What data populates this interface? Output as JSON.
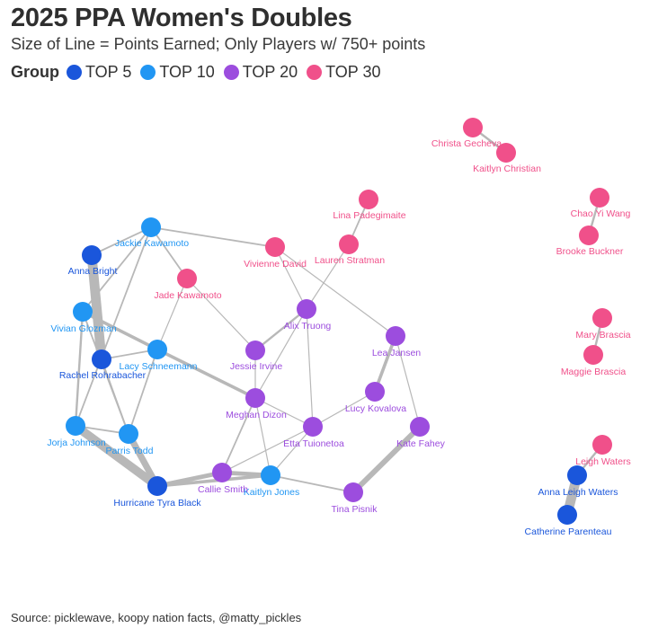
{
  "header": {
    "title": "2025 PPA Women's Doubles",
    "subtitle": "Size of Line = Points Earned; Only Players w/ 750+ points"
  },
  "legend": {
    "title": "Group",
    "items": [
      {
        "label": "TOP 5",
        "group": "top5"
      },
      {
        "label": "TOP 10",
        "group": "top10"
      },
      {
        "label": "TOP 20",
        "group": "top20"
      },
      {
        "label": "TOP 30",
        "group": "top30"
      }
    ]
  },
  "colors": {
    "top5": "#1a56db",
    "top10": "#2196f3",
    "top20": "#9c4dde",
    "top30": "#f0508a",
    "edge": "#b8b8b8"
  },
  "source": "Source: picklewave, koopy nation facts, @matty_pickles",
  "chart_data": {
    "type": "network",
    "nodes": [
      {
        "id": "christa",
        "label": "Christa Gecheva",
        "group": "top30"
      },
      {
        "id": "kaitlyn",
        "label": "Kaitlyn Christian",
        "group": "top30"
      },
      {
        "id": "lina",
        "label": "Lina Padegimaite",
        "group": "top30"
      },
      {
        "id": "chao",
        "label": "Chao Yi Wang",
        "group": "top30"
      },
      {
        "id": "brooke",
        "label": "Brooke Buckner",
        "group": "top30"
      },
      {
        "id": "lauren",
        "label": "Lauren Stratman",
        "group": "top30"
      },
      {
        "id": "vivienne",
        "label": "Vivienne David",
        "group": "top30"
      },
      {
        "id": "jade",
        "label": "Jade Kawamoto",
        "group": "top30"
      },
      {
        "id": "mary",
        "label": "Mary Brascia",
        "group": "top30"
      },
      {
        "id": "maggie",
        "label": "Maggie Brascia",
        "group": "top30"
      },
      {
        "id": "leigh",
        "label": "Leigh Waters",
        "group": "top30"
      },
      {
        "id": "jackie",
        "label": "Jackie Kawamoto",
        "group": "top10"
      },
      {
        "id": "vivian",
        "label": "Vivian Glozman",
        "group": "top10"
      },
      {
        "id": "lacy",
        "label": "Lacy Schneemann",
        "group": "top10"
      },
      {
        "id": "jorja",
        "label": "Jorja Johnson",
        "group": "top10"
      },
      {
        "id": "parris",
        "label": "Parris Todd",
        "group": "top10"
      },
      {
        "id": "kaitlyce",
        "label": "Kaitlyn Jones",
        "group": "top10"
      },
      {
        "id": "anna_bright",
        "label": "Anna Bright",
        "group": "top5"
      },
      {
        "id": "rachel",
        "label": "Rachel Rohrabacher",
        "group": "top5"
      },
      {
        "id": "tyra",
        "label": "Hurricane Tyra Black",
        "group": "top5"
      },
      {
        "id": "anna_leigh",
        "label": "Anna Leigh Waters",
        "group": "top5"
      },
      {
        "id": "catherine",
        "label": "Catherine Parenteau",
        "group": "top5"
      },
      {
        "id": "alix",
        "label": "Alix Truong",
        "group": "top20"
      },
      {
        "id": "jessie",
        "label": "Jessie Irvine",
        "group": "top20"
      },
      {
        "id": "meghan",
        "label": "Meghan Dizon",
        "group": "top20"
      },
      {
        "id": "lea",
        "label": "Lea Jansen",
        "group": "top20"
      },
      {
        "id": "lucy",
        "label": "Lucy Kovalova",
        "group": "top20"
      },
      {
        "id": "etta",
        "label": "Etta Tuionetoa",
        "group": "top20"
      },
      {
        "id": "kate",
        "label": "Kate Fahey",
        "group": "top20"
      },
      {
        "id": "callie",
        "label": "Callie Smith",
        "group": "top20"
      },
      {
        "id": "tina",
        "label": "Tina Pisnik",
        "group": "top20"
      }
    ],
    "edges": [
      {
        "source": "christa",
        "target": "kaitlyn",
        "weight": 2
      },
      {
        "source": "chao",
        "target": "brooke",
        "weight": 2
      },
      {
        "source": "mary",
        "target": "maggie",
        "weight": 2
      },
      {
        "source": "leigh",
        "target": "anna_leigh",
        "weight": 2
      },
      {
        "source": "anna_leigh",
        "target": "catherine",
        "weight": 9
      },
      {
        "source": "anna_bright",
        "target": "rachel",
        "weight": 9
      },
      {
        "source": "jorja",
        "target": "tyra",
        "weight": 8
      },
      {
        "source": "parris",
        "target": "tyra",
        "weight": 6
      },
      {
        "source": "tyra",
        "target": "callie",
        "weight": 4
      },
      {
        "source": "tyra",
        "target": "kaitlyce",
        "weight": 3
      },
      {
        "source": "callie",
        "target": "kaitlyce",
        "weight": 4
      },
      {
        "source": "kaitlyce",
        "target": "tina",
        "weight": 1.5
      },
      {
        "source": "tina",
        "target": "kate",
        "weight": 5
      },
      {
        "source": "lea",
        "target": "lucy",
        "weight": 3
      },
      {
        "source": "lacy",
        "target": "meghan",
        "weight": 3
      },
      {
        "source": "vivian",
        "target": "lacy",
        "weight": 3
      },
      {
        "source": "jackie",
        "target": "anna_bright",
        "weight": 1.5
      },
      {
        "source": "jackie",
        "target": "vivian",
        "weight": 1.5
      },
      {
        "source": "jackie",
        "target": "vivienne",
        "weight": 1.5
      },
      {
        "source": "jackie",
        "target": "jade",
        "weight": 1.5
      },
      {
        "source": "jackie",
        "target": "jorja",
        "weight": 1.5
      },
      {
        "source": "vivian",
        "target": "parris",
        "weight": 1.5
      },
      {
        "source": "rachel",
        "target": "lacy",
        "weight": 1.5
      },
      {
        "source": "rachel",
        "target": "parris",
        "weight": 1.5
      },
      {
        "source": "jorja",
        "target": "vivian",
        "weight": 2
      },
      {
        "source": "jorja",
        "target": "parris",
        "weight": 1.5
      },
      {
        "source": "lacy",
        "target": "parris",
        "weight": 1.5
      },
      {
        "source": "jade",
        "target": "lacy",
        "weight": 1
      },
      {
        "source": "jade",
        "target": "jessie",
        "weight": 1
      },
      {
        "source": "vivienne",
        "target": "alix",
        "weight": 1
      },
      {
        "source": "vivienne",
        "target": "lea",
        "weight": 1
      },
      {
        "source": "lauren",
        "target": "alix",
        "weight": 1
      },
      {
        "source": "lina",
        "target": "lauren",
        "weight": 1.5
      },
      {
        "source": "alix",
        "target": "jessie",
        "weight": 2
      },
      {
        "source": "alix",
        "target": "meghan",
        "weight": 1
      },
      {
        "source": "alix",
        "target": "etta",
        "weight": 1
      },
      {
        "source": "jessie",
        "target": "meghan",
        "weight": 1
      },
      {
        "source": "meghan",
        "target": "etta",
        "weight": 1
      },
      {
        "source": "meghan",
        "target": "callie",
        "weight": 1.5
      },
      {
        "source": "meghan",
        "target": "kaitlyce",
        "weight": 1
      },
      {
        "source": "lucy",
        "target": "etta",
        "weight": 1
      },
      {
        "source": "lea",
        "target": "kate",
        "weight": 1
      },
      {
        "source": "etta",
        "target": "callie",
        "weight": 1
      },
      {
        "source": "etta",
        "target": "kaitlyce",
        "weight": 1
      }
    ]
  }
}
